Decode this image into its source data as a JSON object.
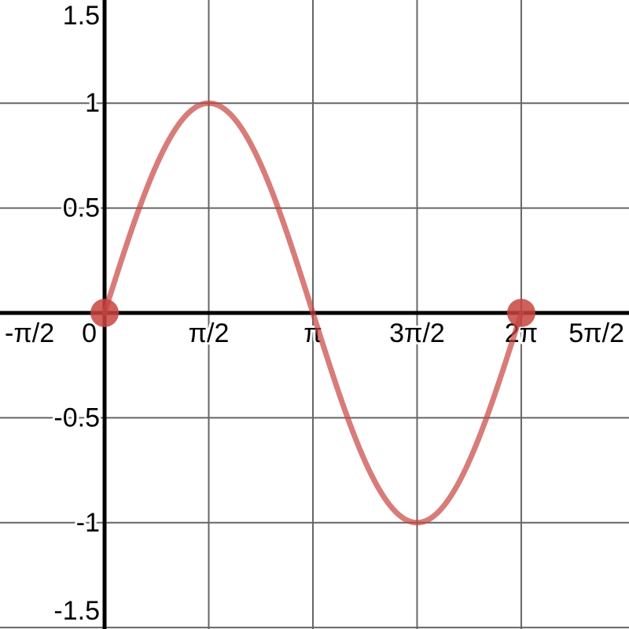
{
  "chart_data": {
    "type": "line",
    "title": "",
    "xlabel": "",
    "ylabel": "",
    "function": {
      "name": "sine-curve",
      "expr": "sin",
      "domain": [
        0,
        6.283185307
      ],
      "color": "#c74440",
      "stroke_opacity": 0.7,
      "stroke_width": 7
    },
    "points": [
      {
        "x": 0,
        "y": 0,
        "name": "point-origin"
      },
      {
        "x": 6.283185307,
        "y": 0,
        "name": "point-2pi"
      }
    ],
    "point_style": {
      "color": "#c74440",
      "opacity": 0.85,
      "radius": 18
    },
    "axes": {
      "xlim": [
        -1.577,
        7.908
      ],
      "ylim": [
        -1.507,
        1.492
      ],
      "color": "#000000",
      "width": 5,
      "x_ticks": [
        {
          "value": -1.5707963,
          "label": "-π/2",
          "grid": false
        },
        {
          "value": 0,
          "label": "0",
          "grid": false
        },
        {
          "value": 1.5707963,
          "label": "π/2",
          "grid": true
        },
        {
          "value": 3.1415927,
          "label": "π",
          "grid": true
        },
        {
          "value": 4.712389,
          "label": "3π/2",
          "grid": true
        },
        {
          "value": 6.2831853,
          "label": "2π",
          "grid": true
        },
        {
          "value": 7.8539816,
          "label": "5π/2",
          "grid": false
        }
      ],
      "y_ticks": [
        {
          "value": 1.5,
          "label": "1.5",
          "grid": false
        },
        {
          "value": 1,
          "label": "1",
          "grid": true
        },
        {
          "value": 0.5,
          "label": "0.5",
          "grid": true
        },
        {
          "value": -0.5,
          "label": "-0.5",
          "grid": true
        },
        {
          "value": -1,
          "label": "-1",
          "grid": true
        },
        {
          "value": -1.5,
          "label": "-1.5",
          "grid": true
        }
      ]
    },
    "grid": {
      "on": true,
      "color": "#666666",
      "width": 2
    },
    "labels": {
      "color": "#000000",
      "font_size": 34,
      "halo": "#ffffff",
      "halo_width": 6
    },
    "legend": {
      "visible": false
    }
  }
}
